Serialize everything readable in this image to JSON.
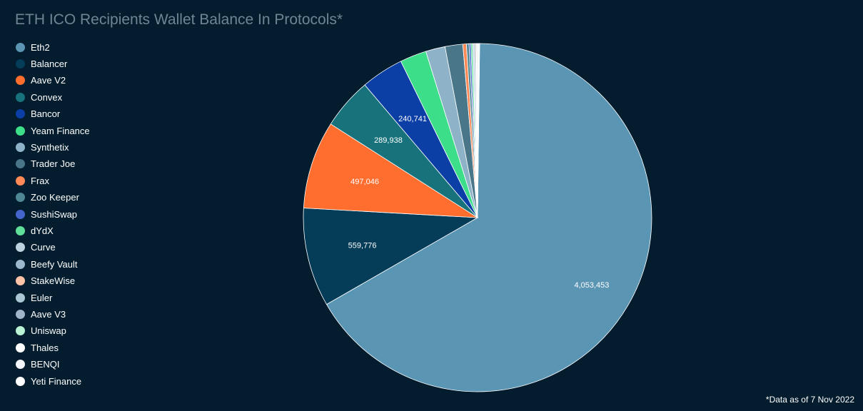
{
  "chart_data": {
    "type": "pie",
    "title": "ETH ICO Recipients Wallet Balance In Protocols*",
    "footnote": "*Data as of 7 Nov 2022",
    "legend_position": "left",
    "slices": [
      {
        "label": "Eth2",
        "value": 4053453,
        "value_label": "4,053,453",
        "color": "#5b95b4"
      },
      {
        "label": "Balancer",
        "value": 559776,
        "value_label": "559,776",
        "color": "#053d59"
      },
      {
        "label": "Aave V2",
        "value": 497046,
        "value_label": "497,046",
        "color": "#ff6e2f"
      },
      {
        "label": "Convex",
        "value": 289938,
        "value_label": "289,938",
        "color": "#17727b"
      },
      {
        "label": "Bancor",
        "value": 240741,
        "value_label": "240,741",
        "color": "#0c3fa6"
      },
      {
        "label": "Yeam Finance",
        "value": 150000,
        "value_label": "",
        "color": "#3dde8a"
      },
      {
        "label": "Synthetix",
        "value": 110000,
        "value_label": "",
        "color": "#8eb3c8"
      },
      {
        "label": "Trader Joe",
        "value": 100000,
        "value_label": "",
        "color": "#4a7689"
      },
      {
        "label": "Frax",
        "value": 20000,
        "value_label": "",
        "color": "#ff8a57"
      },
      {
        "label": "Zoo Keeper",
        "value": 15000,
        "value_label": "",
        "color": "#4f8795"
      },
      {
        "label": "SushiSwap",
        "value": 10000,
        "value_label": "",
        "color": "#4466cc"
      },
      {
        "label": "dYdX",
        "value": 10000,
        "value_label": "",
        "color": "#5fe09a"
      },
      {
        "label": "Curve",
        "value": 8000,
        "value_label": "",
        "color": "#bcd2de"
      },
      {
        "label": "Beefy Vault",
        "value": 8000,
        "value_label": "",
        "color": "#9bb8cd"
      },
      {
        "label": "StakeWise",
        "value": 5000,
        "value_label": "",
        "color": "#ffc3a8"
      },
      {
        "label": "Euler",
        "value": 5000,
        "value_label": "",
        "color": "#a9c7d4"
      },
      {
        "label": "Aave V3",
        "value": 4000,
        "value_label": "",
        "color": "#9fb4c8"
      },
      {
        "label": "Uniswap",
        "value": 4000,
        "value_label": "",
        "color": "#b9f2d4"
      },
      {
        "label": "Thales",
        "value": 2000,
        "value_label": "",
        "color": "#ffffff"
      },
      {
        "label": "BENQI",
        "value": 2000,
        "value_label": "",
        "color": "#f3f6fb"
      },
      {
        "label": "Yeti Finance",
        "value": 1000,
        "value_label": "",
        "color": "#ffffff"
      }
    ]
  }
}
